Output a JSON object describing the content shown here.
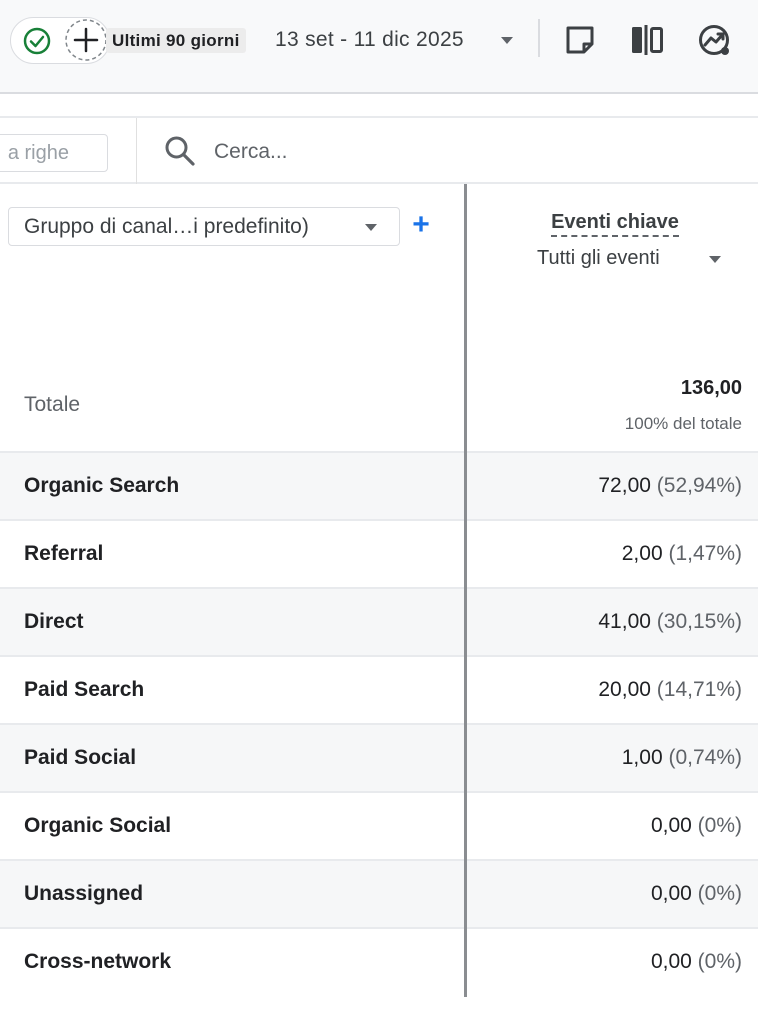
{
  "toolbar": {
    "range_label": "Ultimi 90 giorni",
    "date_range": "13 set - 11 dic 2025",
    "icons": [
      "check-circle-icon",
      "add-circle-icon",
      "caret-down-icon",
      "note-icon",
      "compare-icon",
      "insights-icon"
    ]
  },
  "search": {
    "rows_field_text": "a righe",
    "placeholder": "Cerca..."
  },
  "table": {
    "dimension_label": "Gruppo di canal…i predefinito)",
    "add_dimension": "+",
    "metric_title": "Eventi chiave",
    "metric_filter": "Tutti gli eventi",
    "total": {
      "label": "Totale",
      "value": "136,00",
      "pct": "100% del totale"
    },
    "rows": [
      {
        "name": "Organic Search",
        "value": "72,00",
        "pct": "(52,94%)"
      },
      {
        "name": "Referral",
        "value": "2,00",
        "pct": "(1,47%)"
      },
      {
        "name": "Direct",
        "value": "41,00",
        "pct": "(30,15%)"
      },
      {
        "name": "Paid Search",
        "value": "20,00",
        "pct": "(14,71%)"
      },
      {
        "name": "Paid Social",
        "value": "1,00",
        "pct": "(0,74%)"
      },
      {
        "name": "Organic Social",
        "value": "0,00",
        "pct": "(0%)"
      },
      {
        "name": "Unassigned",
        "value": "0,00",
        "pct": "(0%)"
      },
      {
        "name": "Cross-network",
        "value": "0,00",
        "pct": "(0%)"
      }
    ]
  },
  "colors": {
    "accent_blue": "#1a73e8",
    "check_green": "#188038",
    "row_shade": "#f6f7f8",
    "divider": "#dadce0"
  }
}
